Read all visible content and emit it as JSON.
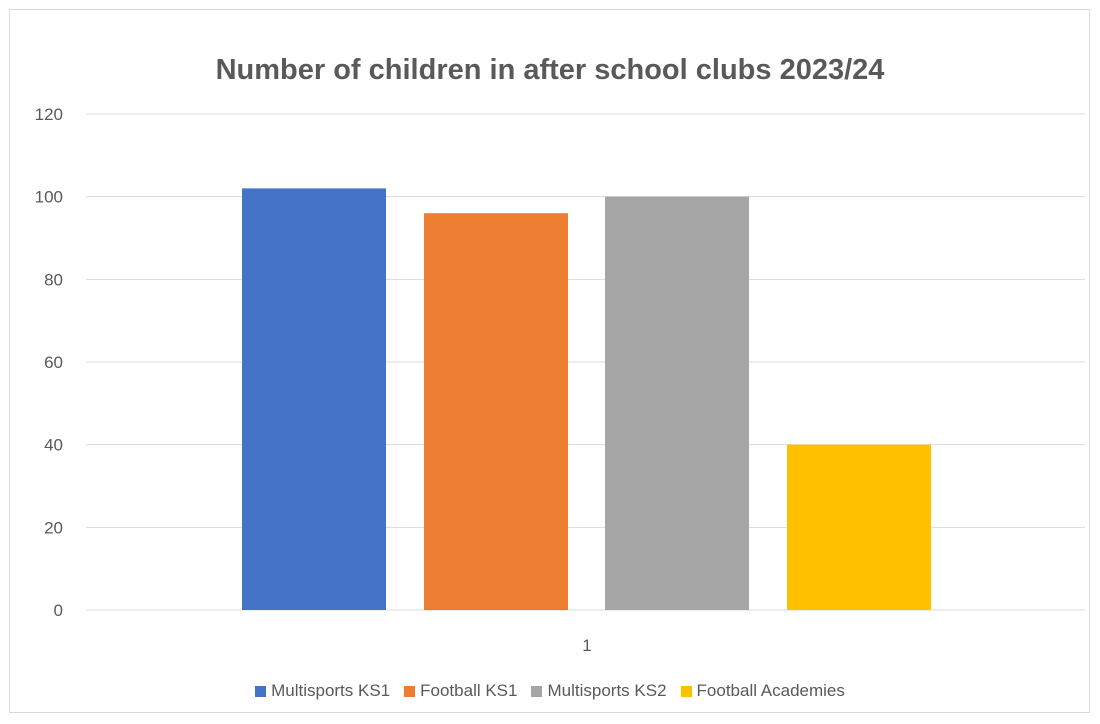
{
  "chart_data": {
    "type": "bar",
    "title": "Number of children in after school clubs 2023/24",
    "categories": [
      "1"
    ],
    "series": [
      {
        "name": "Multisports KS1",
        "values": [
          102
        ],
        "color": "#4472c4"
      },
      {
        "name": "Football KS1",
        "values": [
          96
        ],
        "color": "#ed7d31"
      },
      {
        "name": "Multisports KS2",
        "values": [
          100
        ],
        "color": "#a5a5a5"
      },
      {
        "name": "Football Academies",
        "values": [
          40
        ],
        "color": "#ffc000"
      }
    ],
    "yticks": [
      "0",
      "20",
      "40",
      "60",
      "80",
      "100",
      "120"
    ],
    "ylim": [
      0,
      120
    ],
    "grid": true,
    "legend_position": "bottom",
    "xlabel": "",
    "ylabel": ""
  }
}
